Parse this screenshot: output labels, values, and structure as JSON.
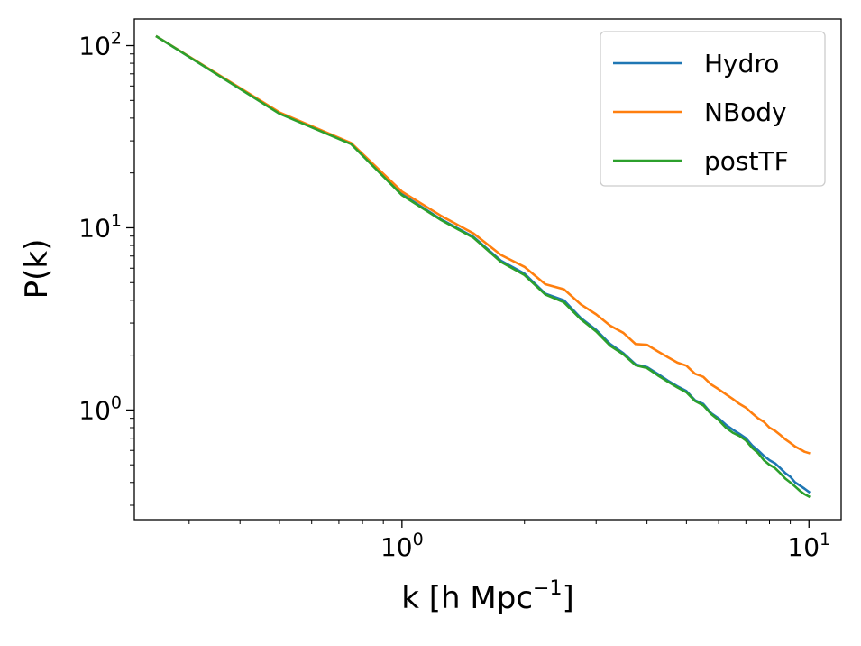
{
  "chart_data": {
    "type": "line",
    "title": "",
    "xlabel": {
      "base": "k [h Mpc",
      "sup": "−1",
      "tail": "]"
    },
    "ylabel": "P(k)",
    "xscale": "log",
    "yscale": "log",
    "xlim": [
      0.22,
      12.0
    ],
    "ylim": [
      0.25,
      140
    ],
    "grid": false,
    "legend_position": "top-right",
    "x_ticks": [
      {
        "value": 1,
        "base": "10",
        "exp": "0"
      },
      {
        "value": 10,
        "base": "10",
        "exp": "1"
      }
    ],
    "y_ticks": [
      {
        "value": 1,
        "base": "10",
        "exp": "0"
      },
      {
        "value": 10,
        "base": "10",
        "exp": "1"
      },
      {
        "value": 100,
        "base": "10",
        "exp": "2"
      }
    ],
    "x": [
      0.25,
      0.5,
      0.75,
      1.0,
      1.25,
      1.5,
      1.75,
      2.0,
      2.25,
      2.5,
      2.75,
      3.0,
      3.25,
      3.5,
      3.75,
      4.0,
      4.25,
      4.5,
      4.75,
      5.0,
      5.25,
      5.5,
      5.75,
      6.0,
      6.25,
      6.5,
      6.75,
      7.0,
      7.25,
      7.5,
      7.75,
      8.0,
      8.25,
      8.5,
      8.75,
      9.0,
      9.25,
      9.5,
      9.75,
      10.0
    ],
    "series": [
      {
        "name": "Hydro",
        "color": "#1f77b4",
        "values": [
          112,
          42.5,
          29.0,
          15.3,
          11.1,
          8.9,
          6.6,
          5.6,
          4.35,
          4.0,
          3.2,
          2.75,
          2.3,
          2.05,
          1.78,
          1.72,
          1.58,
          1.45,
          1.35,
          1.27,
          1.13,
          1.08,
          0.96,
          0.9,
          0.83,
          0.78,
          0.74,
          0.7,
          0.64,
          0.6,
          0.56,
          0.53,
          0.51,
          0.48,
          0.45,
          0.43,
          0.4,
          0.385,
          0.37,
          0.355
        ]
      },
      {
        "name": "NBody",
        "color": "#ff7f0e",
        "values": [
          112,
          43.0,
          29.2,
          15.8,
          11.6,
          9.3,
          7.1,
          6.1,
          4.9,
          4.6,
          3.8,
          3.35,
          2.9,
          2.65,
          2.3,
          2.28,
          2.1,
          1.95,
          1.82,
          1.75,
          1.58,
          1.52,
          1.38,
          1.3,
          1.22,
          1.15,
          1.08,
          1.03,
          0.96,
          0.9,
          0.86,
          0.8,
          0.77,
          0.73,
          0.69,
          0.66,
          0.63,
          0.61,
          0.59,
          0.58
        ]
      },
      {
        "name": "postTF",
        "color": "#2ca02c",
        "values": [
          112,
          42.3,
          28.8,
          15.1,
          11.0,
          8.8,
          6.5,
          5.5,
          4.3,
          3.9,
          3.15,
          2.7,
          2.25,
          2.02,
          1.76,
          1.7,
          1.55,
          1.43,
          1.33,
          1.25,
          1.12,
          1.06,
          0.95,
          0.88,
          0.8,
          0.75,
          0.72,
          0.68,
          0.62,
          0.58,
          0.53,
          0.5,
          0.48,
          0.45,
          0.42,
          0.4,
          0.38,
          0.36,
          0.345,
          0.335
        ]
      }
    ]
  }
}
